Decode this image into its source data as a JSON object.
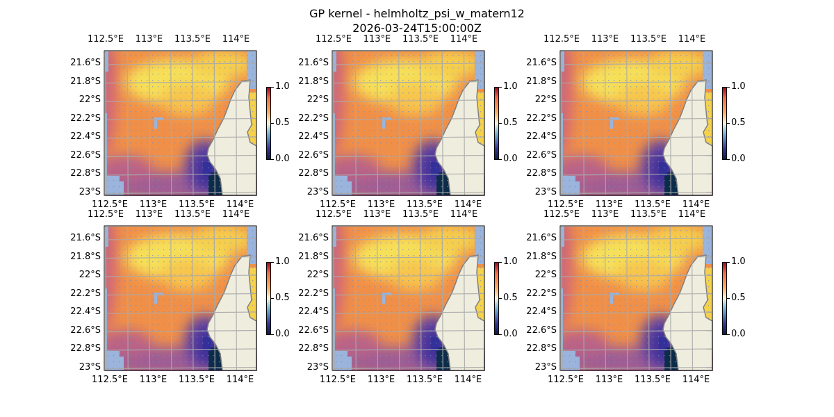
{
  "figure": {
    "title": "GP kernel - helmholtz_psi_w_matern12",
    "subtitle": "2026-03-24T15:00:00Z"
  },
  "axes": {
    "lon_ticks": [
      "112.5°E",
      "113°E",
      "113.5°E",
      "114°E"
    ],
    "lon_values": [
      112.5,
      113.0,
      113.5,
      114.0
    ],
    "lat_ticks": [
      "21.6°S",
      "21.8°S",
      "22°S",
      "22.2°S",
      "22.4°S",
      "22.6°S",
      "22.8°S",
      "23°S"
    ],
    "lat_values": [
      -21.6,
      -21.8,
      -22.0,
      -22.2,
      -22.4,
      -22.6,
      -22.8,
      -23.0
    ],
    "colorbar_ticks": [
      "0.0",
      "0.5",
      "1.0"
    ],
    "colorbar_range": [
      0.0,
      1.0
    ]
  },
  "panels_count": 6,
  "colors": {
    "land": "#efedde",
    "ocean_mask": "#9ab4dc",
    "gridline": "#aaaaaa",
    "colormap_low": "#313695",
    "colormap_mid": "#ffffbf",
    "colormap_high": "#a50026"
  }
}
